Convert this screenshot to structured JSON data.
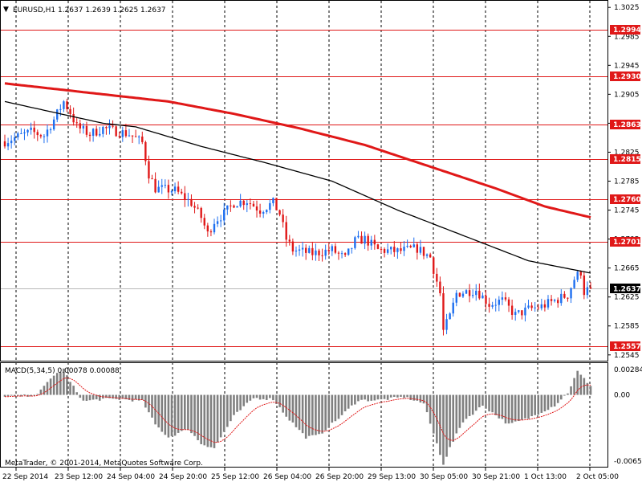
{
  "header": {
    "symbol_info": "EURUSD,H1  1.2637 1.2639 1.2625 1.2637"
  },
  "macd": {
    "info": "MACD(5,34,5) 0.00078 0.00088",
    "axis_labels": [
      "0.00284",
      "0.00",
      "-0.00654"
    ]
  },
  "footer": {
    "copyright": "MetaTrader, © 2001-2014, MetaQuotes Software Corp."
  },
  "price_axis_labels": [
    "1.3025",
    "1.2985",
    "1.2945",
    "1.2905",
    "1.2865",
    "1.2825",
    "1.2785",
    "1.2745",
    "1.2705",
    "1.2665",
    "1.2625",
    "1.2585",
    "1.2545"
  ],
  "levels": [
    {
      "price": 1.2994,
      "label": "1.2994"
    },
    {
      "price": 1.293,
      "label": "1.2930"
    },
    {
      "price": 1.2863,
      "label": "1.2863"
    },
    {
      "price": 1.2815,
      "label": "1.2815"
    },
    {
      "price": 1.276,
      "label": "1.2760"
    },
    {
      "price": 1.2701,
      "label": "1.2701"
    },
    {
      "price": 1.2557,
      "label": "1.2557"
    }
  ],
  "current_price": {
    "price": 1.2637,
    "label": "1.2637"
  },
  "time_labels": [
    "22 Sep 2014",
    "23 Sep 12:00",
    "24 Sep 04:00",
    "24 Sep 20:00",
    "25 Sep 12:00",
    "26 Sep 04:00",
    "26 Sep 20:00",
    "29 Sep 13:00",
    "30 Sep 05:00",
    "30 Sep 21:00",
    "1 Oct 13:00",
    "2 Oct 05:00"
  ],
  "colors": {
    "bull": "#1e6ff0",
    "bear": "#e01818",
    "level_line": "#e01818",
    "ma_slow": "#e01818",
    "ma_fast": "#000000",
    "macd_bar": "#808080",
    "signal": "#e01818",
    "grid": "#000000"
  },
  "chart_data": {
    "type": "candlestick",
    "symbol": "EURUSD",
    "timeframe": "H1",
    "ohlc_header": {
      "open": 1.2637,
      "high": 1.2639,
      "low": 1.2625,
      "close": 1.2637
    },
    "y_range": [
      1.2537,
      1.3033
    ],
    "close_path": [
      [
        0,
        1.284
      ],
      [
        8,
        1.2853
      ],
      [
        12,
        1.2848
      ],
      [
        15,
        1.287
      ],
      [
        18,
        1.2895
      ],
      [
        20,
        1.288
      ],
      [
        22,
        1.286
      ],
      [
        26,
        1.285
      ],
      [
        30,
        1.2858
      ],
      [
        38,
        1.285
      ],
      [
        42,
        1.2838
      ],
      [
        44,
        1.2795
      ],
      [
        46,
        1.2775
      ],
      [
        52,
        1.2772
      ],
      [
        57,
        1.2755
      ],
      [
        60,
        1.2735
      ],
      [
        62,
        1.2712
      ],
      [
        64,
        1.273
      ],
      [
        67,
        1.274
      ],
      [
        70,
        1.2755
      ],
      [
        74,
        1.2758
      ],
      [
        78,
        1.2745
      ],
      [
        82,
        1.2755
      ],
      [
        84,
        1.274
      ],
      [
        86,
        1.2705
      ],
      [
        88,
        1.269
      ],
      [
        94,
        1.2685
      ],
      [
        100,
        1.269
      ],
      [
        104,
        1.2678
      ],
      [
        107,
        1.2702
      ],
      [
        110,
        1.2705
      ],
      [
        114,
        1.269
      ],
      [
        120,
        1.2688
      ],
      [
        126,
        1.2692
      ],
      [
        130,
        1.268
      ],
      [
        133,
        1.263
      ],
      [
        134,
        1.2578
      ],
      [
        136,
        1.2598
      ],
      [
        138,
        1.263
      ],
      [
        144,
        1.2635
      ],
      [
        148,
        1.2615
      ],
      [
        152,
        1.262
      ],
      [
        156,
        1.26
      ],
      [
        160,
        1.2608
      ],
      [
        164,
        1.2612
      ],
      [
        168,
        1.262
      ],
      [
        172,
        1.2628
      ],
      [
        174,
        1.265
      ],
      [
        176,
        1.266
      ],
      [
        177,
        1.2632
      ],
      [
        178,
        1.2635
      ],
      [
        179,
        1.2637
      ]
    ],
    "ma_slow": [
      [
        0,
        1.292
      ],
      [
        40,
        1.29
      ],
      [
        50,
        1.2895
      ],
      [
        70,
        1.2878
      ],
      [
        90,
        1.2858
      ],
      [
        110,
        1.2835
      ],
      [
        130,
        1.2805
      ],
      [
        150,
        1.2775
      ],
      [
        165,
        1.275
      ],
      [
        179,
        1.2735
      ]
    ],
    "ma_fast": [
      [
        0,
        1.2895
      ],
      [
        20,
        1.2875
      ],
      [
        30,
        1.2865
      ],
      [
        40,
        1.286
      ],
      [
        60,
        1.2833
      ],
      [
        80,
        1.281
      ],
      [
        100,
        1.2785
      ],
      [
        120,
        1.2745
      ],
      [
        140,
        1.271
      ],
      [
        160,
        1.2675
      ],
      [
        179,
        1.2658
      ]
    ],
    "macd": {
      "range": [
        -0.00654,
        0.00284
      ],
      "hist": [
        [
          0,
          -0.0002
        ],
        [
          10,
          0.0
        ],
        [
          14,
          0.0016
        ],
        [
          18,
          0.0024
        ],
        [
          20,
          0.0012
        ],
        [
          24,
          -0.0006
        ],
        [
          30,
          -0.0004
        ],
        [
          36,
          -0.0004
        ],
        [
          42,
          -0.0006
        ],
        [
          46,
          -0.0028
        ],
        [
          50,
          -0.004
        ],
        [
          56,
          -0.0032
        ],
        [
          60,
          -0.0046
        ],
        [
          64,
          -0.005
        ],
        [
          70,
          -0.002
        ],
        [
          76,
          -0.0003
        ],
        [
          82,
          -0.0004
        ],
        [
          86,
          -0.002
        ],
        [
          92,
          -0.004
        ],
        [
          96,
          -0.0038
        ],
        [
          102,
          -0.0022
        ],
        [
          108,
          -0.0005
        ],
        [
          114,
          -0.0005
        ],
        [
          122,
          -0.0002
        ],
        [
          128,
          -0.0008
        ],
        [
          134,
          -0.0065
        ],
        [
          136,
          -0.005
        ],
        [
          140,
          -0.0025
        ],
        [
          146,
          -0.001
        ],
        [
          154,
          -0.0028
        ],
        [
          160,
          -0.0022
        ],
        [
          168,
          -0.001
        ],
        [
          172,
          0.0002
        ],
        [
          175,
          0.0022
        ],
        [
          177,
          0.0015
        ],
        [
          179,
          0.0009
        ]
      ]
    }
  }
}
